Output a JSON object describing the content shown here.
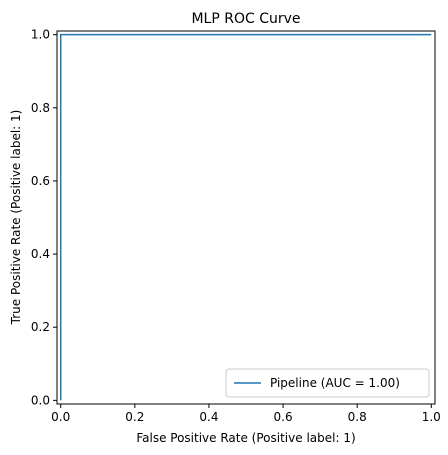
{
  "chart_data": {
    "type": "line",
    "title": "MLP ROC Curve",
    "xlabel": "False Positive Rate (Positive label: 1)",
    "ylabel": "True Positive Rate (Positive label: 1)",
    "xlim": [
      -0.01,
      1.01
    ],
    "ylim": [
      -0.01,
      1.01
    ],
    "xticks": [
      "0.0",
      "0.2",
      "0.4",
      "0.6",
      "0.8",
      "1.0"
    ],
    "yticks": [
      "0.0",
      "0.2",
      "0.4",
      "0.6",
      "0.8",
      "1.0"
    ],
    "grid": false,
    "legend_position": "lower-right",
    "series": [
      {
        "name": "Pipeline (AUC = 1.00)",
        "color": "#1f77b4",
        "x": [
          0.0,
          0.0,
          1.0
        ],
        "y": [
          0.0,
          1.0,
          1.0
        ]
      }
    ]
  }
}
